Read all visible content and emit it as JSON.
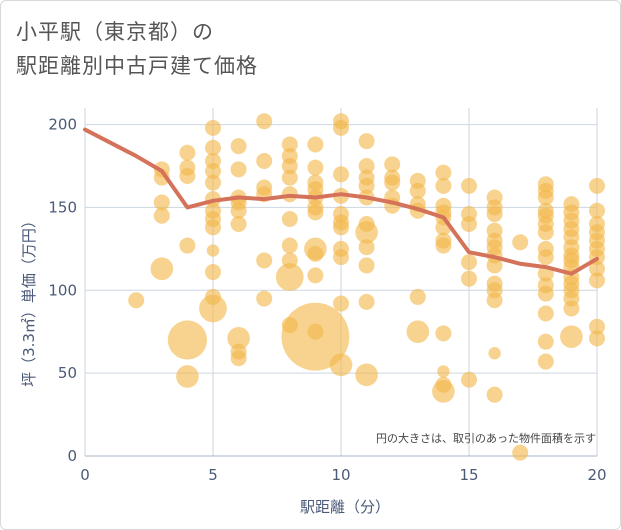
{
  "title_line1": "小平駅（東京都）の",
  "title_line2": "駅距離別中古戸建て価格",
  "chart_data": {
    "type": "scatter",
    "xlabel": "駅距離（分）",
    "ylabel": "坪（3.3㎡）単価（万円）",
    "xlim": [
      0,
      20
    ],
    "ylim": [
      0,
      210
    ],
    "x_ticks": [
      0,
      5,
      10,
      15,
      20
    ],
    "y_ticks": [
      0,
      50,
      100,
      150,
      200
    ],
    "grid": true,
    "annotation": "円の大きさは、取引のあった物件面積を示す",
    "bubble_color": "#f2b84b",
    "line_color": "#d4725a",
    "bubbles": [
      [
        2,
        94,
        1
      ],
      [
        3,
        173,
        1
      ],
      [
        3,
        168,
        1
      ],
      [
        3,
        153,
        1
      ],
      [
        3,
        145,
        1
      ],
      [
        3,
        113,
        2
      ],
      [
        4,
        183,
        1
      ],
      [
        4,
        174,
        1
      ],
      [
        4,
        169,
        1
      ],
      [
        4,
        127,
        1
      ],
      [
        4,
        70,
        6
      ],
      [
        4,
        48,
        2
      ],
      [
        5,
        198,
        1
      ],
      [
        5,
        186,
        1
      ],
      [
        5,
        178,
        1
      ],
      [
        5,
        172,
        1
      ],
      [
        5,
        165,
        1
      ],
      [
        5,
        155,
        1
      ],
      [
        5,
        148,
        1
      ],
      [
        5,
        143,
        1
      ],
      [
        5,
        138,
        1
      ],
      [
        5,
        124,
        0.6
      ],
      [
        5,
        111,
        1
      ],
      [
        5,
        96,
        1
      ],
      [
        5,
        89,
        3
      ],
      [
        6,
        187,
        1
      ],
      [
        6,
        173,
        1
      ],
      [
        6,
        156,
        1
      ],
      [
        6,
        153,
        1
      ],
      [
        6,
        148,
        1
      ],
      [
        6,
        140,
        1
      ],
      [
        6,
        71,
        2
      ],
      [
        6,
        63,
        1
      ],
      [
        6,
        59,
        1
      ],
      [
        7,
        202,
        1
      ],
      [
        7,
        178,
        1
      ],
      [
        7,
        162,
        1
      ],
      [
        7,
        158,
        1
      ],
      [
        7,
        118,
        1
      ],
      [
        7,
        95,
        1
      ],
      [
        8,
        188,
        1
      ],
      [
        8,
        181,
        1
      ],
      [
        8,
        175,
        1
      ],
      [
        8,
        168,
        1
      ],
      [
        8,
        158,
        1
      ],
      [
        8,
        143,
        1
      ],
      [
        8,
        127,
        1
      ],
      [
        8,
        118,
        1
      ],
      [
        8,
        108,
        3
      ],
      [
        8,
        79,
        1
      ],
      [
        9,
        188,
        1
      ],
      [
        9,
        174,
        1
      ],
      [
        9,
        165,
        1
      ],
      [
        9,
        161,
        1
      ],
      [
        9,
        156,
        1
      ],
      [
        9,
        150,
        1
      ],
      [
        9,
        147,
        1
      ],
      [
        9,
        125,
        2
      ],
      [
        9,
        122,
        1
      ],
      [
        9,
        109,
        1
      ],
      [
        9,
        72,
        18
      ],
      [
        9,
        75,
        1
      ],
      [
        10,
        202,
        1
      ],
      [
        10,
        198,
        1
      ],
      [
        10,
        170,
        1
      ],
      [
        10,
        157,
        1
      ],
      [
        10,
        146,
        1
      ],
      [
        10,
        141,
        1
      ],
      [
        10,
        138,
        1
      ],
      [
        10,
        125,
        1
      ],
      [
        10,
        120,
        1
      ],
      [
        10,
        92,
        1
      ],
      [
        10,
        55,
        2
      ],
      [
        11,
        190,
        1
      ],
      [
        11,
        175,
        1
      ],
      [
        11,
        168,
        1
      ],
      [
        11,
        163,
        1
      ],
      [
        11,
        156,
        1
      ],
      [
        11,
        140,
        1
      ],
      [
        11,
        135,
        2
      ],
      [
        11,
        126,
        1
      ],
      [
        11,
        115,
        1
      ],
      [
        11,
        93,
        1
      ],
      [
        11,
        49,
        2
      ],
      [
        12,
        176,
        1
      ],
      [
        12,
        168,
        1
      ],
      [
        12,
        165,
        1
      ],
      [
        12,
        156,
        1
      ],
      [
        12,
        151,
        1
      ],
      [
        13,
        166,
        1
      ],
      [
        13,
        160,
        1
      ],
      [
        13,
        152,
        1
      ],
      [
        13,
        148,
        1
      ],
      [
        13,
        96,
        1
      ],
      [
        13,
        75,
        2
      ],
      [
        14,
        171,
        1
      ],
      [
        14,
        163,
        1
      ],
      [
        14,
        151,
        1
      ],
      [
        14,
        147,
        1
      ],
      [
        14,
        144,
        1
      ],
      [
        14,
        138,
        1
      ],
      [
        14,
        130,
        1
      ],
      [
        14,
        127,
        1
      ],
      [
        14,
        74,
        1
      ],
      [
        14,
        51,
        0.6
      ],
      [
        14,
        43,
        1
      ],
      [
        14,
        39,
        2
      ],
      [
        15,
        163,
        1
      ],
      [
        15,
        146,
        1
      ],
      [
        15,
        140,
        1
      ],
      [
        15,
        117,
        1
      ],
      [
        15,
        107,
        1
      ],
      [
        15,
        46,
        1
      ],
      [
        16,
        156,
        1
      ],
      [
        16,
        150,
        1
      ],
      [
        16,
        146,
        1
      ],
      [
        16,
        136,
        1
      ],
      [
        16,
        130,
        1
      ],
      [
        16,
        126,
        1
      ],
      [
        16,
        121,
        1
      ],
      [
        16,
        115,
        1
      ],
      [
        16,
        104,
        1
      ],
      [
        16,
        100,
        1
      ],
      [
        16,
        94,
        1
      ],
      [
        16,
        62,
        0.6
      ],
      [
        16,
        37,
        1
      ],
      [
        17,
        129,
        1
      ],
      [
        17,
        2,
        1
      ],
      [
        18,
        164,
        1
      ],
      [
        18,
        160,
        1
      ],
      [
        18,
        156,
        1
      ],
      [
        18,
        148,
        1
      ],
      [
        18,
        145,
        1
      ],
      [
        18,
        140,
        1
      ],
      [
        18,
        135,
        1
      ],
      [
        18,
        125,
        1
      ],
      [
        18,
        120,
        1
      ],
      [
        18,
        110,
        1
      ],
      [
        18,
        103,
        1
      ],
      [
        18,
        98,
        1
      ],
      [
        18,
        86,
        1
      ],
      [
        18,
        69,
        1
      ],
      [
        18,
        57,
        1
      ],
      [
        19,
        152,
        1
      ],
      [
        19,
        147,
        1
      ],
      [
        19,
        142,
        1
      ],
      [
        19,
        137,
        1
      ],
      [
        19,
        132,
        1
      ],
      [
        19,
        126,
        1
      ],
      [
        19,
        121,
        1
      ],
      [
        19,
        118,
        1
      ],
      [
        19,
        114,
        1
      ],
      [
        19,
        108,
        1
      ],
      [
        19,
        104,
        1
      ],
      [
        19,
        100,
        1
      ],
      [
        19,
        95,
        1
      ],
      [
        19,
        89,
        1
      ],
      [
        19,
        72,
        2
      ],
      [
        20,
        163,
        1
      ],
      [
        20,
        148,
        1
      ],
      [
        20,
        140,
        1
      ],
      [
        20,
        135,
        1
      ],
      [
        20,
        130,
        1
      ],
      [
        20,
        125,
        1
      ],
      [
        20,
        120,
        1
      ],
      [
        20,
        113,
        1
      ],
      [
        20,
        106,
        1
      ],
      [
        20,
        78,
        1
      ],
      [
        20,
        71,
        1
      ]
    ],
    "average_line": {
      "x": [
        0,
        1,
        2,
        3,
        4,
        5,
        6,
        7,
        8,
        9,
        10,
        11,
        12,
        13,
        14,
        15,
        16,
        17,
        18,
        19,
        20
      ],
      "y": [
        197,
        189,
        181,
        172,
        150,
        154,
        156,
        155,
        157,
        156,
        158,
        156,
        153,
        149,
        144,
        123,
        120,
        116,
        114,
        110,
        119
      ]
    }
  }
}
